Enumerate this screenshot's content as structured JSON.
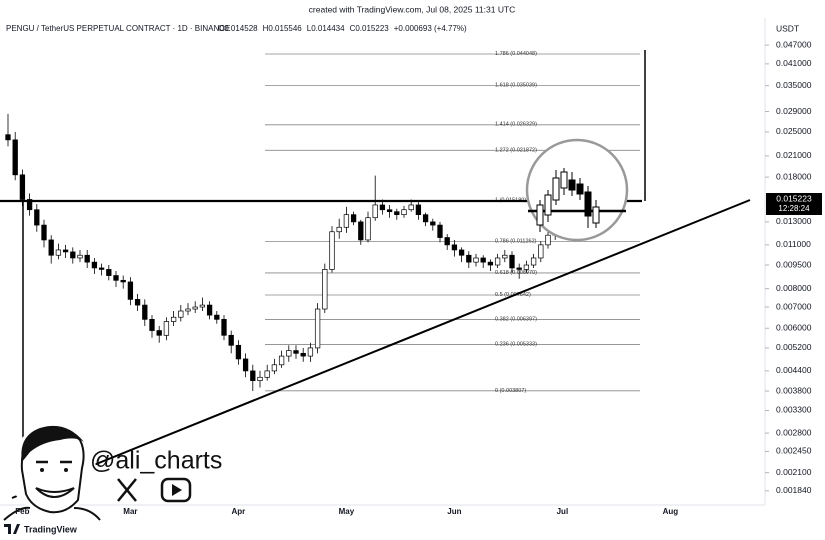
{
  "header": "created with TradingView.com, Jul 08, 2025 11:31 UTC",
  "watermark": "@ali_charts",
  "logo": "TradingView",
  "chart_data": {
    "type": "candlestick",
    "title": "PENGU / TetherUS PERPETUAL CONTRACT · 1D · BINANCE",
    "legend_values": [
      "O0.014528",
      "H0.015546",
      "L0.014434",
      "C0.015223",
      "+0.000693 (+4.77%)"
    ],
    "y_axis_label": "USDT",
    "categories": [
      null,
      null,
      "Feb",
      null,
      null,
      null,
      null,
      null,
      null,
      null,
      null,
      null,
      null,
      null,
      null,
      null,
      null,
      "Mar",
      null,
      null,
      null,
      null,
      null,
      null,
      null,
      null,
      null,
      null,
      null,
      null,
      null,
      null,
      "Apr",
      null,
      null,
      null,
      null,
      null,
      null,
      null,
      null,
      null,
      null,
      null,
      null,
      null,
      null,
      "May",
      null,
      null,
      null,
      null,
      null,
      null,
      null,
      null,
      null,
      null,
      null,
      null,
      null,
      null,
      "Jun",
      null,
      null,
      null,
      null,
      null,
      null,
      null,
      null,
      null,
      null,
      null,
      null,
      null,
      null,
      "Jul",
      null,
      null,
      null,
      null,
      null,
      null,
      null,
      null,
      null,
      null,
      null,
      null,
      null,
      null,
      "Aug"
    ],
    "open": [
      0.0245,
      0.0236,
      0.0183,
      0.0153,
      0.0142,
      0.0127,
      0.0114,
      0.0102,
      0.0106,
      0.01045,
      0.01,
      0.0102,
      0.0097,
      0.0093,
      0.0092,
      0.0088,
      0.0085,
      0.0084,
      0.0074,
      0.0071,
      0.0064,
      0.0059,
      0.0057,
      0.0063,
      0.0065,
      0.0068,
      0.0069,
      0.007,
      0.0071,
      0.0066,
      0.0064,
      0.0057,
      0.0053,
      0.0048,
      0.0044,
      0.0041,
      0.0042,
      0.0044,
      0.0046,
      0.0049,
      0.0051,
      0.005,
      0.0049,
      0.0052,
      0.0069,
      0.0092,
      0.0121,
      0.0125,
      0.0137,
      0.013,
      0.0114,
      0.0134,
      0.0147,
      0.0142,
      0.014,
      0.0137,
      0.0142,
      0.0147,
      0.0137,
      0.013,
      0.0127,
      0.0116,
      0.011,
      0.0106,
      0.0102,
      0.0097,
      0.01,
      0.0097,
      0.0095,
      0.01,
      0.0102,
      0.0093,
      0.0092,
      0.0095,
      0.01,
      0.011,
      0.0118,
      0.014,
      0.017,
      0.0164,
      0.0158,
      0.014528,
      null,
      null,
      null,
      null,
      null,
      null,
      null,
      null,
      null,
      null,
      null
    ],
    "high": [
      0.0285,
      0.025,
      0.019,
      0.016,
      0.0148,
      0.0132,
      0.0118,
      0.0111,
      0.011,
      0.0108,
      0.0106,
      0.0106,
      0.01,
      0.0096,
      0.0095,
      0.0091,
      0.0088,
      0.0087,
      0.0077,
      0.0074,
      0.0066,
      0.0061,
      0.0065,
      0.0068,
      0.0071,
      0.0072,
      0.0073,
      0.0075,
      0.0073,
      0.0068,
      0.0066,
      0.0059,
      0.0055,
      0.005,
      0.0046,
      0.0044,
      0.0046,
      0.0048,
      0.0051,
      0.0053,
      0.0053,
      0.0052,
      0.0054,
      0.0072,
      0.0096,
      0.0126,
      0.0133,
      0.0145,
      0.014,
      0.0132,
      0.014,
      0.0182,
      0.0153,
      0.0147,
      0.0143,
      0.0146,
      0.0153,
      0.015,
      0.0139,
      0.0133,
      0.013,
      0.0119,
      0.0114,
      0.0108,
      0.0105,
      0.0103,
      0.0102,
      0.0099,
      0.0103,
      0.0106,
      0.0105,
      0.0096,
      0.0098,
      0.0103,
      0.0113,
      0.0122,
      0.0144,
      0.018,
      0.0176,
      0.0168,
      0.0162,
      0.015546,
      null,
      null,
      null,
      null,
      null,
      null,
      null,
      null,
      null,
      null,
      null
    ],
    "low": [
      0.0225,
      0.0176,
      0.0146,
      0.0136,
      0.0121,
      0.0108,
      0.0096,
      0.0099,
      0.01,
      0.0096,
      0.0097,
      0.0093,
      0.0089,
      0.0088,
      0.0085,
      0.0081,
      0.008,
      0.0071,
      0.0068,
      0.0061,
      0.0056,
      0.0054,
      0.0055,
      0.0061,
      0.0063,
      0.0066,
      0.0067,
      0.0068,
      0.0064,
      0.0062,
      0.0055,
      0.005,
      0.0046,
      0.0042,
      0.0038,
      0.0039,
      0.0041,
      0.0043,
      0.0045,
      0.0047,
      0.0048,
      0.0047,
      0.0047,
      0.005,
      0.0067,
      0.009,
      0.0115,
      0.012,
      0.0127,
      0.011,
      0.0112,
      0.0131,
      0.0137,
      0.0134,
      0.0132,
      0.0134,
      0.014,
      0.0132,
      0.0126,
      0.0122,
      0.0112,
      0.0106,
      0.0101,
      0.0097,
      0.0093,
      0.0094,
      0.0093,
      0.0091,
      0.0093,
      0.0097,
      0.009,
      0.0086,
      0.009,
      0.0093,
      0.0097,
      0.0107,
      0.0114,
      0.0136,
      0.0159,
      0.015,
      0.0142,
      0.014434,
      null,
      null,
      null,
      null,
      null,
      null,
      null,
      null,
      null,
      null,
      null
    ],
    "close": [
      0.0236,
      0.0183,
      0.0153,
      0.0142,
      0.0127,
      0.0114,
      0.0102,
      0.0106,
      0.01045,
      0.01,
      0.0102,
      0.0097,
      0.0093,
      0.0092,
      0.0088,
      0.0085,
      0.0084,
      0.0074,
      0.0071,
      0.0064,
      0.0059,
      0.0057,
      0.0063,
      0.0065,
      0.0068,
      0.0069,
      0.007,
      0.0071,
      0.0066,
      0.0064,
      0.0057,
      0.0053,
      0.0048,
      0.0044,
      0.0041,
      0.0042,
      0.0044,
      0.0046,
      0.0049,
      0.0051,
      0.005,
      0.0049,
      0.0052,
      0.0069,
      0.0092,
      0.0121,
      0.0125,
      0.0137,
      0.013,
      0.0114,
      0.0134,
      0.0147,
      0.0142,
      0.014,
      0.0137,
      0.0142,
      0.0147,
      0.0137,
      0.013,
      0.0127,
      0.0116,
      0.011,
      0.0106,
      0.0102,
      0.0097,
      0.01,
      0.0097,
      0.0095,
      0.01,
      0.0102,
      0.0093,
      0.0092,
      0.0095,
      0.01,
      0.011,
      0.0118,
      0.014,
      0.017,
      0.0164,
      0.0158,
      0.0147,
      0.015223,
      null,
      null,
      null,
      null,
      null,
      null,
      null,
      null,
      null,
      null,
      null
    ],
    "up_color": "#ffffff",
    "down_color": "#000000",
    "log_scale": true,
    "ylim": [
      0.00166,
      0.0564
    ],
    "yticks": [
      {
        "value": 0.047,
        "label": "0.047000"
      },
      {
        "value": 0.041,
        "label": "0.041000"
      },
      {
        "value": 0.035,
        "label": "0.035000"
      },
      {
        "value": 0.029,
        "label": "0.029000"
      },
      {
        "value": 0.025,
        "label": "0.025000"
      },
      {
        "value": 0.021,
        "label": "0.021000"
      },
      {
        "value": 0.018,
        "label": "0.018000"
      },
      {
        "value": 0.013,
        "label": "0.013000"
      },
      {
        "value": 0.011,
        "label": "0.011000"
      },
      {
        "value": 0.0095,
        "label": "0.009500"
      },
      {
        "value": 0.008,
        "label": "0.008000"
      },
      {
        "value": 0.007,
        "label": "0.007000"
      },
      {
        "value": 0.006,
        "label": "0.006000"
      },
      {
        "value": 0.0052,
        "label": "0.005200"
      },
      {
        "value": 0.0044,
        "label": "0.004400"
      },
      {
        "value": 0.0038,
        "label": "0.003800"
      },
      {
        "value": 0.0033,
        "label": "0.003300"
      },
      {
        "value": 0.0028,
        "label": "0.002800"
      },
      {
        "value": 0.00245,
        "label": "0.002450"
      },
      {
        "value": 0.0021,
        "label": "0.002100"
      },
      {
        "value": 0.00184,
        "label": "0.001840"
      }
    ],
    "last_price_countdown": "12:28:24",
    "fib_levels": [
      {
        "value": 0.044048,
        "label": "1.786 (0.044048)"
      },
      {
        "value": 0.035039,
        "label": "1.618 (0.035039)"
      },
      {
        "value": 0.026329,
        "label": "1.414 (0.026329)"
      },
      {
        "value": 0.021872,
        "label": "1.272 (0.021872)"
      },
      {
        "value": 0.01518,
        "label": "1 (0.015180)"
      },
      {
        "value": 0.011262,
        "label": "0.786 (0.011262)"
      },
      {
        "value": 0.00897,
        "label": "0.618 (0.008970)"
      },
      {
        "value": 0.007642,
        "label": "0.5 (0.007642)"
      },
      {
        "value": 0.006397,
        "label": "0.382 (0.006397)"
      },
      {
        "value": 0.005333,
        "label": "0.236 (0.005333)"
      },
      {
        "value": 0.003807,
        "label": "0 (0.003807)"
      }
    ]
  }
}
